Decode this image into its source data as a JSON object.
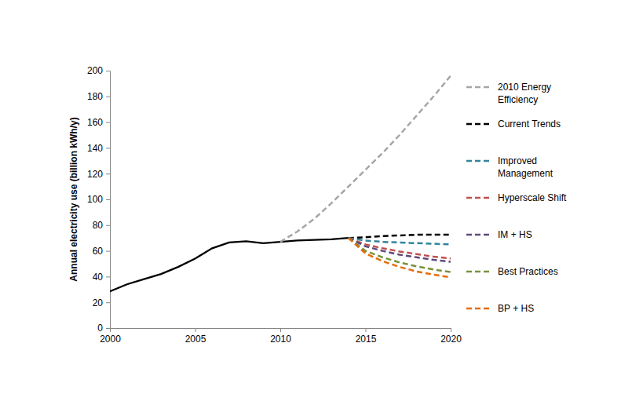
{
  "chart_data": {
    "type": "line",
    "y_label": "Annual electricity use (billion kWh/y)",
    "x": [
      2000,
      2001,
      2002,
      2003,
      2004,
      2005,
      2006,
      2007,
      2008,
      2009,
      2010,
      2011,
      2012,
      2013,
      2014,
      2015,
      2016,
      2017,
      2018,
      2019,
      2020
    ],
    "xlim": [
      2000,
      2020
    ],
    "xticks": [
      2000,
      2005,
      2010,
      2015,
      2020
    ],
    "ylim": [
      0,
      200
    ],
    "yticks": [
      0,
      20,
      40,
      60,
      80,
      100,
      120,
      140,
      160,
      180,
      200
    ],
    "grid": false,
    "legend": "right",
    "series": [
      {
        "color": "#000000",
        "line_style": "solid",
        "values": [
          28.5,
          34,
          38,
          42,
          47.5,
          54,
          62,
          66.5,
          67.5,
          66,
          67,
          68,
          68.5,
          69,
          70,
          null,
          null,
          null,
          null,
          null,
          null
        ]
      },
      {
        "name": "2010 Energy Efficiency",
        "color": "#a6a6a6",
        "line_style": "dashed",
        "values": [
          null,
          null,
          null,
          null,
          null,
          null,
          null,
          null,
          null,
          null,
          67,
          75,
          85,
          97,
          110,
          123,
          136,
          150,
          165,
          180,
          196
        ]
      },
      {
        "name": "Current Trends",
        "color": "#000000",
        "line_style": "dashed",
        "values": [
          null,
          null,
          null,
          null,
          null,
          null,
          null,
          null,
          null,
          null,
          null,
          null,
          null,
          null,
          70,
          70.5,
          71.5,
          72,
          72.5,
          72.5,
          72.5
        ]
      },
      {
        "name": "Improved Management",
        "color": "#31859c",
        "line_style": "dashed",
        "values": [
          null,
          null,
          null,
          null,
          null,
          null,
          null,
          null,
          null,
          null,
          null,
          null,
          null,
          null,
          70,
          68,
          67,
          66.5,
          66,
          65.5,
          65
        ]
      },
      {
        "name": "Hyperscale Shift",
        "color": "#c0504d",
        "line_style": "dashed",
        "values": [
          null,
          null,
          null,
          null,
          null,
          null,
          null,
          null,
          null,
          null,
          null,
          null,
          null,
          null,
          70,
          65,
          62,
          59.5,
          57.5,
          55.5,
          54
        ]
      },
      {
        "name": "IM + HS",
        "color": "#604a7b",
        "line_style": "dashed",
        "values": [
          null,
          null,
          null,
          null,
          null,
          null,
          null,
          null,
          null,
          null,
          null,
          null,
          null,
          null,
          70,
          63.5,
          60,
          57,
          55,
          53,
          51.5
        ]
      },
      {
        "name": "Best Practices",
        "color": "#77933c",
        "line_style": "dashed",
        "values": [
          null,
          null,
          null,
          null,
          null,
          null,
          null,
          null,
          null,
          null,
          null,
          null,
          null,
          null,
          70,
          60,
          55,
          51,
          48,
          45.5,
          43.5
        ]
      },
      {
        "name": "BP + HS",
        "color": "#e46c0a",
        "line_style": "dashed",
        "values": [
          null,
          null,
          null,
          null,
          null,
          null,
          null,
          null,
          null,
          null,
          null,
          null,
          null,
          null,
          70,
          58,
          52,
          47.5,
          44,
          41.5,
          39.5
        ]
      }
    ]
  }
}
